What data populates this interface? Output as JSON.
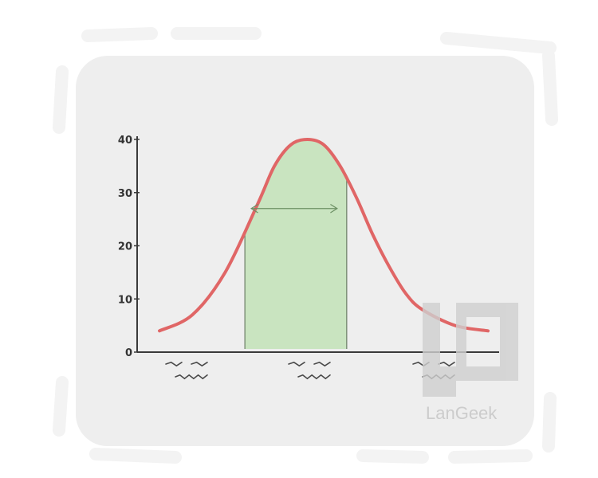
{
  "brand": {
    "name": "LanGeek"
  },
  "colors": {
    "frame": "#f3f3f3",
    "frame_panel": "#eeeeee",
    "curve": "#e06666",
    "highlight_fill": "#c9e4c0",
    "highlight_edge": "#6b7d66",
    "arrow": "#6b8f63",
    "axis": "#3a3a3a",
    "scribble": "#4a4a4a",
    "logo": "#cfcfcf"
  },
  "icons": {
    "arrow": "double-headed-arrow-icon",
    "logo": "langeek-logo-icon"
  },
  "chart_data": {
    "type": "area",
    "title": "",
    "xlabel": "",
    "ylabel": "",
    "ylim": [
      0,
      40
    ],
    "y_ticks": [
      "0",
      "10",
      "20",
      "30",
      "40"
    ],
    "xlim": [
      0,
      100
    ],
    "x_category_scribbles": 3,
    "series": [
      {
        "x": [
          0,
          10,
          20,
          30,
          35,
          40,
          45,
          50,
          55,
          60,
          65,
          70,
          75,
          80,
          90,
          100
        ],
        "y": [
          4,
          7,
          15,
          28,
          35,
          39,
          40,
          39,
          35,
          29,
          22,
          16,
          11,
          8,
          5,
          4
        ]
      }
    ],
    "highlighted_range": {
      "x_start": 26,
      "x_end": 57
    },
    "width_arrow_at_y": 27,
    "grid": false,
    "legend": "none"
  }
}
